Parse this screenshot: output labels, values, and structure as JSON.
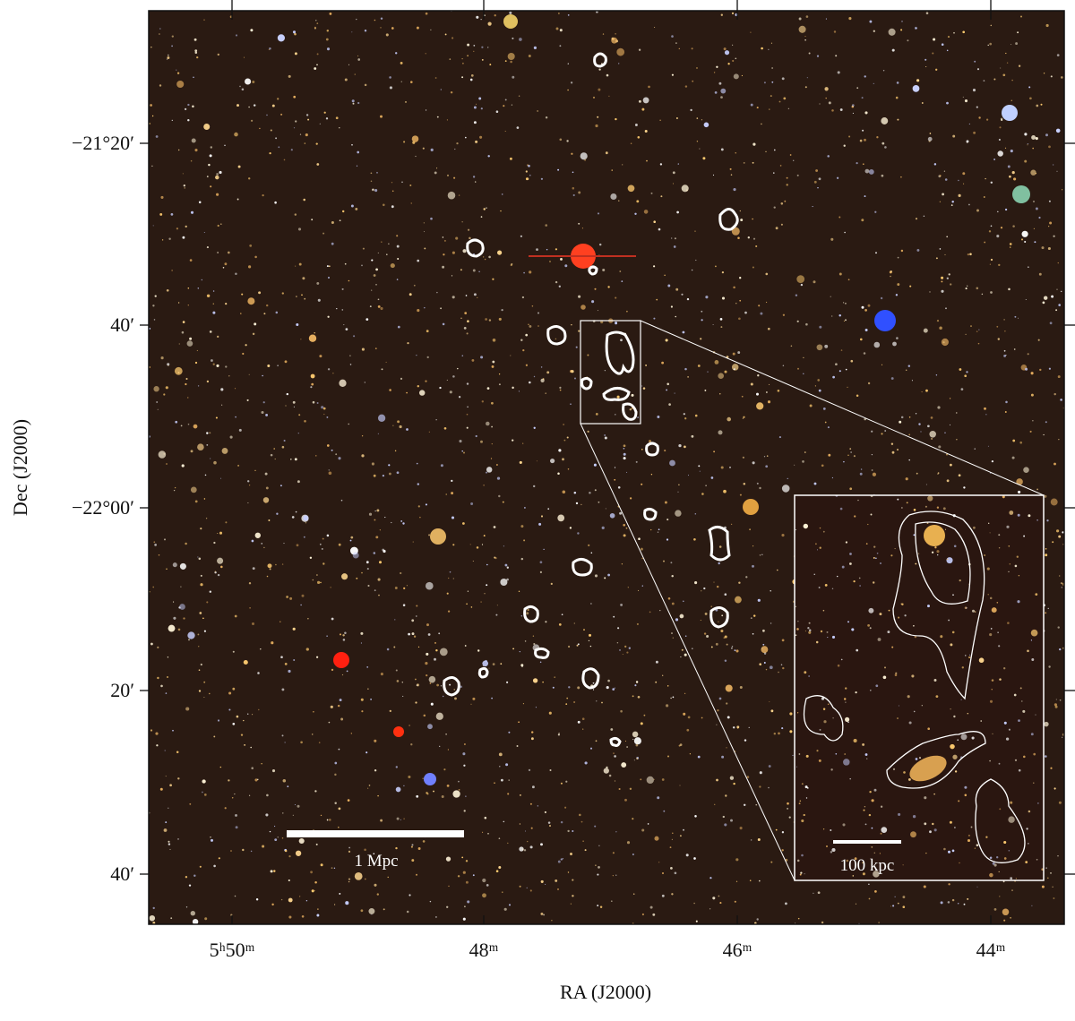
{
  "axes": {
    "x_label": "RA (J2000)",
    "y_label": "Dec (J2000)",
    "x_ticks": [
      "5ʰ50ᵐ",
      "48ᵐ",
      "46ᵐ",
      "44ᵐ"
    ],
    "y_ticks": [
      "−21°20′",
      "40′",
      "−22°00′",
      "20′",
      "40′"
    ]
  },
  "scale_bars": {
    "main": "1 Mpc",
    "inset": "100 kpc"
  }
}
